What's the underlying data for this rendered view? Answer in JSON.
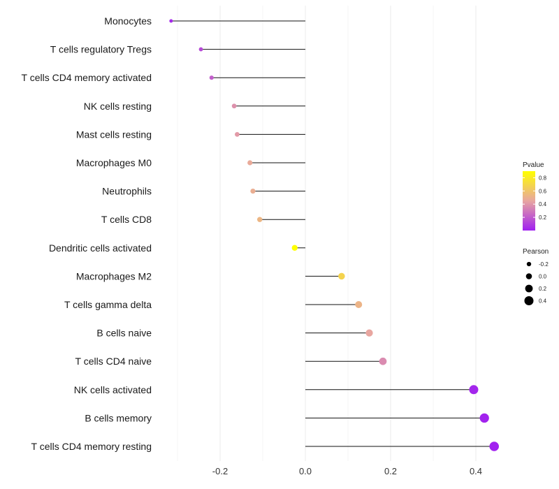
{
  "chart_data": {
    "type": "lollipop",
    "title": "",
    "xlabel": "",
    "ylabel": "",
    "xlim": [
      -0.3,
      0.4
    ],
    "x_ticks": [
      -0.2,
      0.0,
      0.2,
      0.4
    ],
    "x_tick_labels": [
      "-0.2",
      "0.0",
      "0.2",
      "0.4"
    ],
    "grid": true,
    "points": [
      {
        "label": "Monocytes",
        "pearson": -0.315,
        "pvalue": 0.03
      },
      {
        "label": "T cells regulatory  Tregs",
        "pearson": -0.245,
        "pvalue": 0.14
      },
      {
        "label": "T cells CD4 memory activated",
        "pearson": -0.22,
        "pvalue": 0.21
      },
      {
        "label": "NK cells resting",
        "pearson": -0.167,
        "pvalue": 0.38
      },
      {
        "label": "Mast cells resting",
        "pearson": -0.16,
        "pvalue": 0.41
      },
      {
        "label": "Macrophages M0",
        "pearson": -0.13,
        "pvalue": 0.47
      },
      {
        "label": "Neutrophils",
        "pearson": -0.123,
        "pvalue": 0.49
      },
      {
        "label": "T cells CD8",
        "pearson": -0.107,
        "pvalue": 0.53
      },
      {
        "label": "Dendritic cells activated",
        "pearson": -0.025,
        "pvalue": 0.9
      },
      {
        "label": "Macrophages M2",
        "pearson": 0.085,
        "pvalue": 0.68
      },
      {
        "label": "T cells gamma delta",
        "pearson": 0.125,
        "pvalue": 0.52
      },
      {
        "label": "B cells naive",
        "pearson": 0.15,
        "pvalue": 0.45
      },
      {
        "label": "T cells CD4 naive",
        "pearson": 0.182,
        "pvalue": 0.36
      },
      {
        "label": "NK cells activated",
        "pearson": 0.395,
        "pvalue": 0.02
      },
      {
        "label": "B cells memory",
        "pearson": 0.42,
        "pvalue": 0.01
      },
      {
        "label": "T cells CD4 memory resting",
        "pearson": 0.443,
        "pvalue": 0.005
      }
    ],
    "legend_pvalue": {
      "title": "Pvalue",
      "ticks": [
        0.8,
        0.6,
        0.4,
        0.2
      ],
      "tick_labels": [
        "0.8",
        "0.6",
        "0.4",
        "0.2"
      ],
      "range": [
        0.0,
        0.9
      ],
      "color_low": "#a020f0",
      "color_mid": "#e8a6a0",
      "color_high": "#ffff00",
      "position": "right"
    },
    "legend_pearson": {
      "title": "Pearson",
      "values": [
        -0.2,
        0.0,
        0.2,
        0.4
      ],
      "labels": [
        "-0.2",
        "0.0",
        "0.2",
        "0.4"
      ],
      "position": "right"
    }
  }
}
